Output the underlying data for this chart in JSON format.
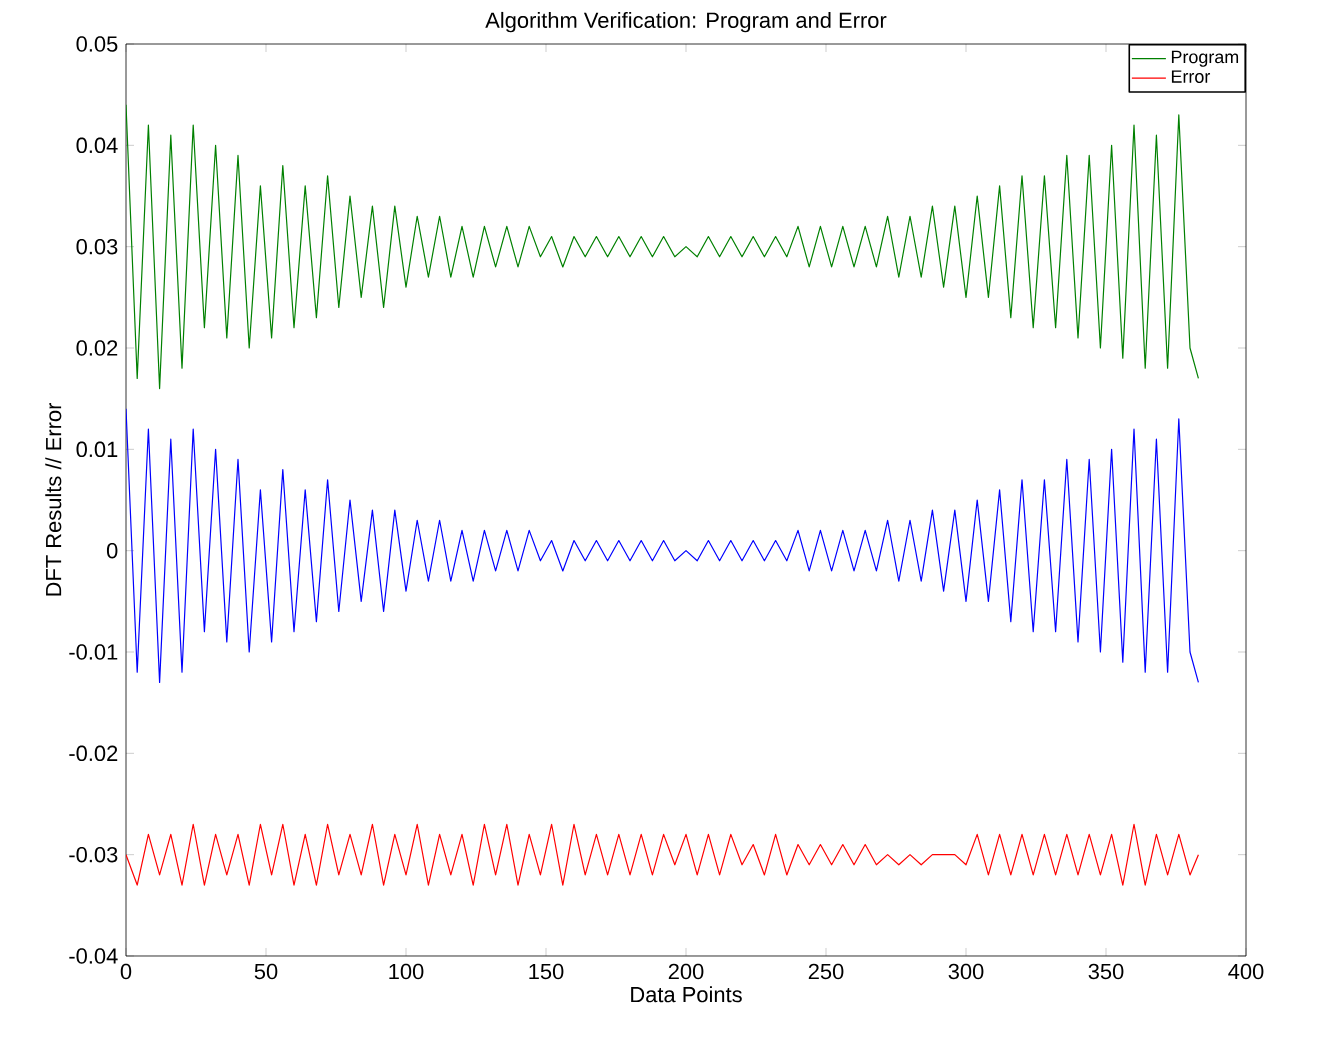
{
  "chart_data": {
    "type": "line",
    "title": "Algorithm Verification: Program and Error",
    "xlabel": "Data Points",
    "ylabel": "DFT Results // Error",
    "x": [
      0,
      4,
      8,
      12,
      16,
      20,
      24,
      28,
      32,
      36,
      40,
      44,
      48,
      52,
      56,
      60,
      64,
      68,
      72,
      76,
      80,
      84,
      88,
      92,
      96,
      100,
      104,
      108,
      112,
      116,
      120,
      124,
      128,
      132,
      136,
      140,
      144,
      148,
      152,
      156,
      160,
      164,
      168,
      172,
      176,
      180,
      184,
      188,
      192,
      196,
      200,
      204,
      208,
      212,
      216,
      220,
      224,
      228,
      232,
      236,
      240,
      244,
      248,
      252,
      256,
      260,
      264,
      268,
      272,
      276,
      280,
      284,
      288,
      292,
      296,
      300,
      304,
      308,
      312,
      316,
      320,
      324,
      328,
      332,
      336,
      340,
      344,
      348,
      352,
      356,
      360,
      364,
      368,
      372,
      376,
      380,
      383
    ],
    "series": [
      {
        "color": "#0000ff",
        "values": [
          0.014,
          -0.012,
          0.012,
          -0.013,
          0.011,
          -0.012,
          0.012,
          -0.008,
          0.01,
          -0.009,
          0.009,
          -0.01,
          0.006,
          -0.009,
          0.008,
          -0.008,
          0.006,
          -0.007,
          0.007,
          -0.006,
          0.005,
          -0.005,
          0.004,
          -0.006,
          0.004,
          -0.004,
          0.003,
          -0.003,
          0.003,
          -0.003,
          0.002,
          -0.003,
          0.002,
          -0.002,
          0.002,
          -0.002,
          0.002,
          -0.001,
          0.001,
          -0.002,
          0.001,
          -0.001,
          0.001,
          -0.001,
          0.001,
          -0.001,
          0.001,
          -0.001,
          0.001,
          -0.001,
          0.0,
          -0.001,
          0.001,
          -0.001,
          0.001,
          -0.001,
          0.001,
          -0.001,
          0.001,
          -0.001,
          0.002,
          -0.002,
          0.002,
          -0.002,
          0.002,
          -0.002,
          0.002,
          -0.002,
          0.003,
          -0.003,
          0.003,
          -0.003,
          0.004,
          -0.004,
          0.004,
          -0.005,
          0.005,
          -0.005,
          0.006,
          -0.007,
          0.007,
          -0.008,
          0.007,
          -0.008,
          0.009,
          -0.009,
          0.009,
          -0.01,
          0.01,
          -0.011,
          0.012,
          -0.012,
          0.011,
          -0.012,
          0.013,
          -0.01,
          -0.013
        ]
      },
      {
        "name": "Program",
        "color": "#008000",
        "values": [
          0.044,
          0.017,
          0.042,
          0.016,
          0.041,
          0.018,
          0.042,
          0.022,
          0.04,
          0.021,
          0.039,
          0.02,
          0.036,
          0.021,
          0.038,
          0.022,
          0.036,
          0.023,
          0.037,
          0.024,
          0.035,
          0.025,
          0.034,
          0.024,
          0.034,
          0.026,
          0.033,
          0.027,
          0.033,
          0.027,
          0.032,
          0.027,
          0.032,
          0.028,
          0.032,
          0.028,
          0.032,
          0.029,
          0.031,
          0.028,
          0.031,
          0.029,
          0.031,
          0.029,
          0.031,
          0.029,
          0.031,
          0.029,
          0.031,
          0.029,
          0.03,
          0.029,
          0.031,
          0.029,
          0.031,
          0.029,
          0.031,
          0.029,
          0.031,
          0.029,
          0.032,
          0.028,
          0.032,
          0.028,
          0.032,
          0.028,
          0.032,
          0.028,
          0.033,
          0.027,
          0.033,
          0.027,
          0.034,
          0.026,
          0.034,
          0.025,
          0.035,
          0.025,
          0.036,
          0.023,
          0.037,
          0.022,
          0.037,
          0.022,
          0.039,
          0.021,
          0.039,
          0.02,
          0.04,
          0.019,
          0.042,
          0.018,
          0.041,
          0.018,
          0.043,
          0.02,
          0.017
        ]
      },
      {
        "name": "Error",
        "color": "#ff0000",
        "values": [
          -0.03,
          -0.033,
          -0.028,
          -0.032,
          -0.028,
          -0.033,
          -0.027,
          -0.033,
          -0.028,
          -0.032,
          -0.028,
          -0.033,
          -0.027,
          -0.032,
          -0.027,
          -0.033,
          -0.028,
          -0.033,
          -0.027,
          -0.032,
          -0.028,
          -0.032,
          -0.027,
          -0.033,
          -0.028,
          -0.032,
          -0.027,
          -0.033,
          -0.028,
          -0.032,
          -0.028,
          -0.033,
          -0.027,
          -0.032,
          -0.027,
          -0.033,
          -0.028,
          -0.032,
          -0.027,
          -0.033,
          -0.027,
          -0.032,
          -0.028,
          -0.032,
          -0.028,
          -0.032,
          -0.028,
          -0.032,
          -0.028,
          -0.031,
          -0.028,
          -0.032,
          -0.028,
          -0.032,
          -0.028,
          -0.031,
          -0.029,
          -0.032,
          -0.028,
          -0.032,
          -0.029,
          -0.031,
          -0.029,
          -0.031,
          -0.029,
          -0.031,
          -0.029,
          -0.031,
          -0.03,
          -0.031,
          -0.03,
          -0.031,
          -0.03,
          -0.03,
          -0.03,
          -0.031,
          -0.028,
          -0.032,
          -0.028,
          -0.032,
          -0.028,
          -0.032,
          -0.028,
          -0.032,
          -0.028,
          -0.032,
          -0.028,
          -0.032,
          -0.028,
          -0.033,
          -0.027,
          -0.033,
          -0.028,
          -0.032,
          -0.028,
          -0.032,
          -0.03
        ]
      }
    ],
    "xlim": [
      0,
      400
    ],
    "xticks": [
      0,
      50,
      100,
      150,
      200,
      250,
      300,
      350,
      400
    ],
    "ylim": [
      -0.04,
      0.05
    ],
    "yticks": [
      -0.04,
      -0.03,
      -0.02,
      -0.01,
      0,
      0.01,
      0.02,
      0.03,
      0.04,
      0.05
    ],
    "legend": "top right",
    "grid": false,
    "marker": "none",
    "line_style": "solid"
  }
}
